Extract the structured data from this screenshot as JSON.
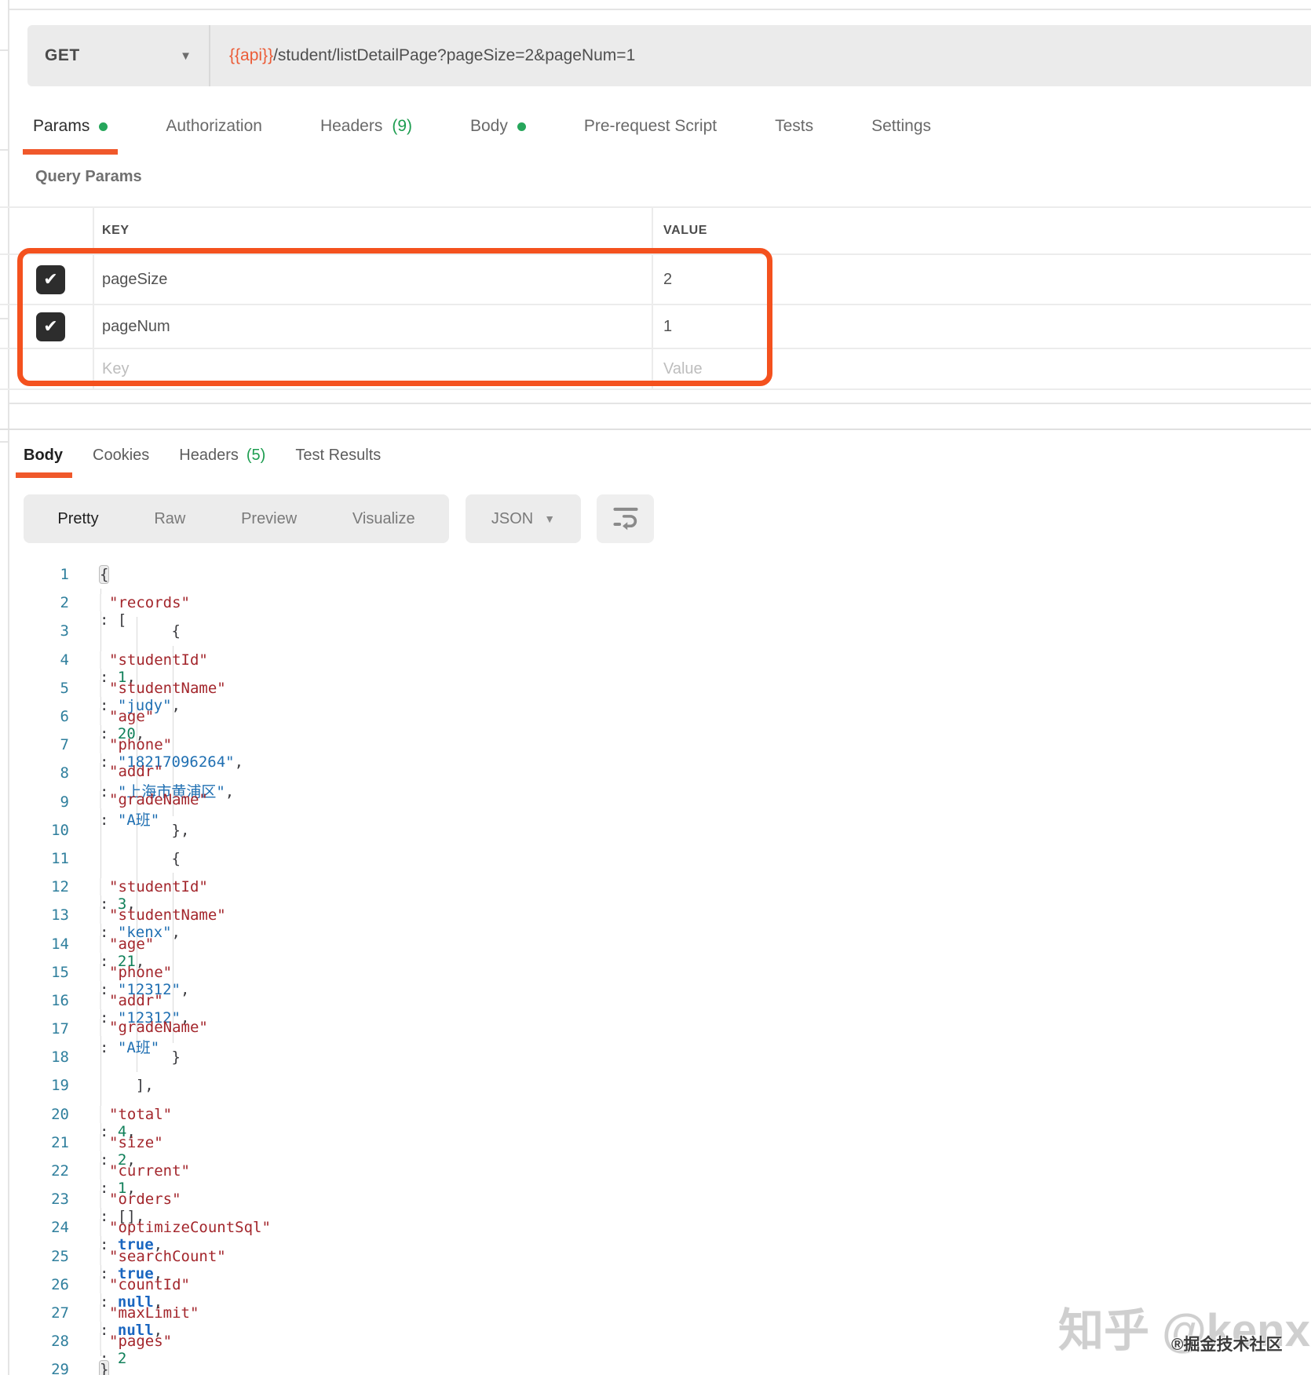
{
  "request": {
    "method": "GET",
    "method_caret": "▼",
    "url": {
      "variable": "{{api}}",
      "path": "/student/listDetailPage?pageSize=2&pageNum=1"
    },
    "tabs": [
      {
        "label": "Params",
        "dot": true,
        "active": true
      },
      {
        "label": "Authorization"
      },
      {
        "label": "Headers",
        "count": "(9)"
      },
      {
        "label": "Body",
        "dot": true
      },
      {
        "label": "Pre-request Script"
      },
      {
        "label": "Tests"
      },
      {
        "label": "Settings"
      }
    ],
    "query": {
      "title": "Query Params",
      "col_key": "KEY",
      "col_value": "VALUE",
      "rows": [
        {
          "key": "pageSize",
          "value": "2",
          "checked": true
        },
        {
          "key": "pageNum",
          "value": "1",
          "checked": true
        }
      ],
      "placeholder": {
        "key": "Key",
        "value": "Value"
      }
    }
  },
  "response": {
    "tabs": [
      {
        "label": "Body",
        "active": true
      },
      {
        "label": "Cookies"
      },
      {
        "label": "Headers",
        "count": "(5)"
      },
      {
        "label": "Test Results"
      }
    ],
    "views": [
      {
        "label": "Pretty",
        "active": true
      },
      {
        "label": "Raw"
      },
      {
        "label": "Preview"
      },
      {
        "label": "Visualize"
      }
    ],
    "format": {
      "label": "JSON",
      "caret": "▼"
    },
    "code": [
      {
        "n": 1,
        "seg": [
          {
            "c": "hl",
            "t": "{"
          }
        ]
      },
      {
        "n": 2,
        "seg": [
          {
            "c": "pun",
            "t": "    "
          },
          {
            "c": "key",
            "t": "\"records\""
          },
          {
            "c": "pun",
            "t": ": ["
          }
        ]
      },
      {
        "n": 3,
        "seg": [
          {
            "c": "pun",
            "t": "        {"
          }
        ]
      },
      {
        "n": 4,
        "seg": [
          {
            "c": "pun",
            "t": "            "
          },
          {
            "c": "key",
            "t": "\"studentId\""
          },
          {
            "c": "pun",
            "t": ": "
          },
          {
            "c": "num",
            "t": "1"
          },
          {
            "c": "pun",
            "t": ","
          }
        ]
      },
      {
        "n": 5,
        "seg": [
          {
            "c": "pun",
            "t": "            "
          },
          {
            "c": "key",
            "t": "\"studentName\""
          },
          {
            "c": "pun",
            "t": ": "
          },
          {
            "c": "str",
            "t": "\"judy\""
          },
          {
            "c": "pun",
            "t": ","
          }
        ]
      },
      {
        "n": 6,
        "seg": [
          {
            "c": "pun",
            "t": "            "
          },
          {
            "c": "key",
            "t": "\"age\""
          },
          {
            "c": "pun",
            "t": ": "
          },
          {
            "c": "num",
            "t": "20"
          },
          {
            "c": "pun",
            "t": ","
          }
        ]
      },
      {
        "n": 7,
        "seg": [
          {
            "c": "pun",
            "t": "            "
          },
          {
            "c": "key",
            "t": "\"phone\""
          },
          {
            "c": "pun",
            "t": ": "
          },
          {
            "c": "str",
            "t": "\"18217096264\""
          },
          {
            "c": "pun",
            "t": ","
          }
        ]
      },
      {
        "n": 8,
        "seg": [
          {
            "c": "pun",
            "t": "            "
          },
          {
            "c": "key",
            "t": "\"addr\""
          },
          {
            "c": "pun",
            "t": ": "
          },
          {
            "c": "str",
            "t": "\"上海市黄浦区\""
          },
          {
            "c": "pun",
            "t": ","
          }
        ]
      },
      {
        "n": 9,
        "seg": [
          {
            "c": "pun",
            "t": "            "
          },
          {
            "c": "key",
            "t": "\"gradeName\""
          },
          {
            "c": "pun",
            "t": ": "
          },
          {
            "c": "str",
            "t": "\"A班\""
          }
        ]
      },
      {
        "n": 10,
        "seg": [
          {
            "c": "pun",
            "t": "        },"
          }
        ]
      },
      {
        "n": 11,
        "seg": [
          {
            "c": "pun",
            "t": "        {"
          }
        ]
      },
      {
        "n": 12,
        "seg": [
          {
            "c": "pun",
            "t": "            "
          },
          {
            "c": "key",
            "t": "\"studentId\""
          },
          {
            "c": "pun",
            "t": ": "
          },
          {
            "c": "num",
            "t": "3"
          },
          {
            "c": "pun",
            "t": ","
          }
        ]
      },
      {
        "n": 13,
        "seg": [
          {
            "c": "pun",
            "t": "            "
          },
          {
            "c": "key",
            "t": "\"studentName\""
          },
          {
            "c": "pun",
            "t": ": "
          },
          {
            "c": "str",
            "t": "\"kenx\""
          },
          {
            "c": "pun",
            "t": ","
          }
        ]
      },
      {
        "n": 14,
        "seg": [
          {
            "c": "pun",
            "t": "            "
          },
          {
            "c": "key",
            "t": "\"age\""
          },
          {
            "c": "pun",
            "t": ": "
          },
          {
            "c": "num",
            "t": "21"
          },
          {
            "c": "pun",
            "t": ","
          }
        ]
      },
      {
        "n": 15,
        "seg": [
          {
            "c": "pun",
            "t": "            "
          },
          {
            "c": "key",
            "t": "\"phone\""
          },
          {
            "c": "pun",
            "t": ": "
          },
          {
            "c": "str",
            "t": "\"12312\""
          },
          {
            "c": "pun",
            "t": ","
          }
        ]
      },
      {
        "n": 16,
        "seg": [
          {
            "c": "pun",
            "t": "            "
          },
          {
            "c": "key",
            "t": "\"addr\""
          },
          {
            "c": "pun",
            "t": ": "
          },
          {
            "c": "str",
            "t": "\"12312\""
          },
          {
            "c": "pun",
            "t": ","
          }
        ]
      },
      {
        "n": 17,
        "seg": [
          {
            "c": "pun",
            "t": "            "
          },
          {
            "c": "key",
            "t": "\"gradeName\""
          },
          {
            "c": "pun",
            "t": ": "
          },
          {
            "c": "str",
            "t": "\"A班\""
          }
        ]
      },
      {
        "n": 18,
        "seg": [
          {
            "c": "pun",
            "t": "        }"
          }
        ]
      },
      {
        "n": 19,
        "seg": [
          {
            "c": "pun",
            "t": "    ],"
          }
        ]
      },
      {
        "n": 20,
        "seg": [
          {
            "c": "pun",
            "t": "    "
          },
          {
            "c": "key",
            "t": "\"total\""
          },
          {
            "c": "pun",
            "t": ": "
          },
          {
            "c": "num",
            "t": "4"
          },
          {
            "c": "pun",
            "t": ","
          }
        ]
      },
      {
        "n": 21,
        "seg": [
          {
            "c": "pun",
            "t": "    "
          },
          {
            "c": "key",
            "t": "\"size\""
          },
          {
            "c": "pun",
            "t": ": "
          },
          {
            "c": "num",
            "t": "2"
          },
          {
            "c": "pun",
            "t": ","
          }
        ]
      },
      {
        "n": 22,
        "seg": [
          {
            "c": "pun",
            "t": "    "
          },
          {
            "c": "key",
            "t": "\"current\""
          },
          {
            "c": "pun",
            "t": ": "
          },
          {
            "c": "num",
            "t": "1"
          },
          {
            "c": "pun",
            "t": ","
          }
        ]
      },
      {
        "n": 23,
        "seg": [
          {
            "c": "pun",
            "t": "    "
          },
          {
            "c": "key",
            "t": "\"orders\""
          },
          {
            "c": "pun",
            "t": ": [],"
          }
        ]
      },
      {
        "n": 24,
        "seg": [
          {
            "c": "pun",
            "t": "    "
          },
          {
            "c": "key",
            "t": "\"optimizeCountSql\""
          },
          {
            "c": "pun",
            "t": ": "
          },
          {
            "c": "kw",
            "t": "true"
          },
          {
            "c": "pun",
            "t": ","
          }
        ]
      },
      {
        "n": 25,
        "seg": [
          {
            "c": "pun",
            "t": "    "
          },
          {
            "c": "key",
            "t": "\"searchCount\""
          },
          {
            "c": "pun",
            "t": ": "
          },
          {
            "c": "kw",
            "t": "true"
          },
          {
            "c": "pun",
            "t": ","
          }
        ]
      },
      {
        "n": 26,
        "seg": [
          {
            "c": "pun",
            "t": "    "
          },
          {
            "c": "key",
            "t": "\"countId\""
          },
          {
            "c": "pun",
            "t": ": "
          },
          {
            "c": "kw",
            "t": "null"
          },
          {
            "c": "pun",
            "t": ","
          }
        ]
      },
      {
        "n": 27,
        "seg": [
          {
            "c": "pun",
            "t": "    "
          },
          {
            "c": "key",
            "t": "\"maxLimit\""
          },
          {
            "c": "pun",
            "t": ": "
          },
          {
            "c": "kw",
            "t": "null"
          },
          {
            "c": "pun",
            "t": ","
          }
        ]
      },
      {
        "n": 28,
        "seg": [
          {
            "c": "pun",
            "t": "    "
          },
          {
            "c": "key",
            "t": "\"pages\""
          },
          {
            "c": "pun",
            "t": ": "
          },
          {
            "c": "num",
            "t": "2"
          }
        ]
      },
      {
        "n": 29,
        "seg": [
          {
            "c": "hl",
            "t": "}"
          }
        ]
      }
    ]
  },
  "watermark": {
    "main": "知乎 @kenx",
    "sub": "®掘金技术社区"
  },
  "colors": {
    "accent_orange": "#f0582b",
    "annotation_orange": "#f4511e",
    "variable_orange": "#eb5b36",
    "green_dot": "#26a65b",
    "green_count": "#1d9d50",
    "code_key": "#a3262c",
    "code_string": "#1f6fb2",
    "code_number": "#10805a",
    "code_keyword": "#1a66c0",
    "line_number": "#2f7f9d"
  }
}
